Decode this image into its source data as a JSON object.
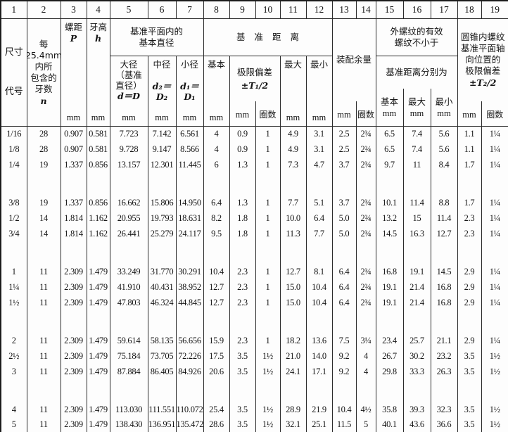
{
  "column_numbers": [
    "1",
    "2",
    "3",
    "4",
    "5",
    "6",
    "7",
    "8",
    "9",
    "10",
    "11",
    "12",
    "13",
    "14",
    "15",
    "16",
    "17",
    "18",
    "19"
  ],
  "header": {
    "size_code": "尺寸\n代号",
    "threads_per_inch": "每\n25.4mm\n内所\n包含的\n牙数",
    "threads_per_inch_sym": "n",
    "pitch_label": "螺距",
    "pitch_sym": "P",
    "height_label": "牙高",
    "height_sym": "h",
    "unit_mm": "mm",
    "unit_turns": "圈数",
    "basic_diameters_group": "基准平面内的\n基本直径",
    "major_dia_label": "大径\n（基准\n直径）",
    "major_dia_sym": "d＝D",
    "pitch_dia_label": "中径",
    "pitch_dia_sym": "d₂＝D₂",
    "minor_dia_label": "小径",
    "minor_dia_sym": "d₁＝D₁",
    "gauge_distance_group": "基准距离",
    "basic_label": "基本",
    "limit_dev_label": "极限偏差",
    "limit_dev_sym": "±T₁/2",
    "max_label": "最大",
    "min_label": "最小",
    "assembly_allowance_group": "装配余量",
    "ext_thread_group": "外螺纹的有效\n螺纹不小于",
    "ext_thread_sub": "基准距离分别为",
    "int_thread_group": "圆锥内螺纹\n基准平面轴\n向位置的\n极限偏差",
    "int_thread_sym": "±T₂/2"
  },
  "rows": [
    [
      "1/16",
      "28",
      "0.907",
      "0.581",
      "7.723",
      "7.142",
      "6.561",
      "4",
      "0.9",
      "1",
      "4.9",
      "3.1",
      "2.5",
      "2¾",
      "6.5",
      "7.4",
      "5.6",
      "1.1",
      "1¼"
    ],
    [
      "1/8",
      "28",
      "0.907",
      "0.581",
      "9.728",
      "9.147",
      "8.566",
      "4",
      "0.9",
      "1",
      "4.9",
      "3.1",
      "2.5",
      "2¾",
      "6.5",
      "7.4",
      "5.6",
      "1.1",
      "1¼"
    ],
    [
      "1/4",
      "19",
      "1.337",
      "0.856",
      "13.157",
      "12.301",
      "11.445",
      "6",
      "1.3",
      "1",
      "7.3",
      "4.7",
      "3.7",
      "2¾",
      "9.7",
      "11",
      "8.4",
      "1.7",
      "1¼"
    ],
    [
      "3/8",
      "19",
      "1.337",
      "0.856",
      "16.662",
      "15.806",
      "14.950",
      "6.4",
      "1.3",
      "1",
      "7.7",
      "5.1",
      "3.7",
      "2¾",
      "10.1",
      "11.4",
      "8.8",
      "1.7",
      "1¼"
    ],
    [
      "1/2",
      "14",
      "1.814",
      "1.162",
      "20.955",
      "19.793",
      "18.631",
      "8.2",
      "1.8",
      "1",
      "10.0",
      "6.4",
      "5.0",
      "2¾",
      "13.2",
      "15",
      "11.4",
      "2.3",
      "1¼"
    ],
    [
      "3/4",
      "14",
      "1.814",
      "1.162",
      "26.441",
      "25.279",
      "24.117",
      "9.5",
      "1.8",
      "1",
      "11.3",
      "7.7",
      "5.0",
      "2¾",
      "14.5",
      "16.3",
      "12.7",
      "2.3",
      "1¼"
    ],
    [
      "1",
      "11",
      "2.309",
      "1.479",
      "33.249",
      "31.770",
      "30.291",
      "10.4",
      "2.3",
      "1",
      "12.7",
      "8.1",
      "6.4",
      "2¾",
      "16.8",
      "19.1",
      "14.5",
      "2.9",
      "1¼"
    ],
    [
      "1¼",
      "11",
      "2.309",
      "1.479",
      "41.910",
      "40.431",
      "38.952",
      "12.7",
      "2.3",
      "1",
      "15.0",
      "10.4",
      "6.4",
      "2¾",
      "19.1",
      "21.4",
      "16.8",
      "2.9",
      "1¼"
    ],
    [
      "1½",
      "11",
      "2.309",
      "1.479",
      "47.803",
      "46.324",
      "44.845",
      "12.7",
      "2.3",
      "1",
      "15.0",
      "10.4",
      "6.4",
      "2¾",
      "19.1",
      "21.4",
      "16.8",
      "2.9",
      "1¼"
    ],
    [
      "2",
      "11",
      "2.309",
      "1.479",
      "59.614",
      "58.135",
      "56.656",
      "15.9",
      "2.3",
      "1",
      "18.2",
      "13.6",
      "7.5",
      "3¼",
      "23.4",
      "25.7",
      "21.1",
      "2.9",
      "1¼"
    ],
    [
      "2½",
      "11",
      "2.309",
      "1.479",
      "75.184",
      "73.705",
      "72.226",
      "17.5",
      "3.5",
      "1½",
      "21.0",
      "14.0",
      "9.2",
      "4",
      "26.7",
      "30.2",
      "23.2",
      "3.5",
      "1½"
    ],
    [
      "3",
      "11",
      "2.309",
      "1.479",
      "87.884",
      "86.405",
      "84.926",
      "20.6",
      "3.5",
      "1½",
      "24.1",
      "17.1",
      "9.2",
      "4",
      "29.8",
      "33.3",
      "26.3",
      "3.5",
      "1½"
    ],
    [
      "4",
      "11",
      "2.309",
      "1.479",
      "113.030",
      "111.551",
      "110.072",
      "25.4",
      "3.5",
      "1½",
      "28.9",
      "21.9",
      "10.4",
      "4½",
      "35.8",
      "39.3",
      "32.3",
      "3.5",
      "1½"
    ],
    [
      "5",
      "11",
      "2.309",
      "1.479",
      "138.430",
      "136.951",
      "135.472",
      "28.6",
      "3.5",
      "1½",
      "32.1",
      "25.1",
      "11.5",
      "5",
      "40.1",
      "43.6",
      "36.6",
      "3.5",
      "1½"
    ]
  ],
  "group_breaks_after": [
    2,
    5,
    8,
    11
  ]
}
